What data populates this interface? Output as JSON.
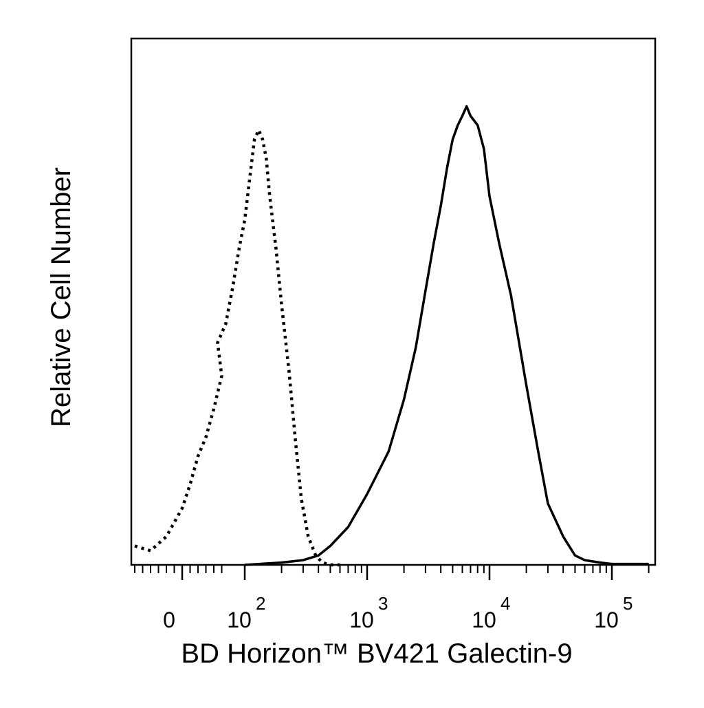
{
  "chart_data": {
    "type": "line",
    "title": "",
    "xlabel": "BD Horizon™ BV421 Galectin-9",
    "ylabel": "Relative Cell Number",
    "x_scale": "biexponential",
    "xlim": [
      -60,
      250000
    ],
    "ylim": [
      0,
      100
    ],
    "x_ticks": [
      {
        "value": 0,
        "label": "0",
        "sup": ""
      },
      {
        "value": 100,
        "label": "10",
        "sup": "2"
      },
      {
        "value": 1000,
        "label": "10",
        "sup": "3"
      },
      {
        "value": 10000,
        "label": "10",
        "sup": "4"
      },
      {
        "value": 100000,
        "label": "10",
        "sup": "5"
      }
    ],
    "grid": false,
    "legend": "none",
    "series": [
      {
        "style": "dotted",
        "color": "#000000",
        "x": [
          -60,
          -40,
          -20,
          0,
          10,
          20,
          30,
          40,
          50,
          60,
          70,
          80,
          90,
          100,
          110,
          120,
          130,
          140,
          150,
          160,
          180,
          200,
          230,
          260,
          290,
          330,
          380,
          430,
          500,
          600
        ],
        "y": [
          4,
          3,
          6,
          12,
          17,
          23,
          27,
          33,
          40,
          47,
          51,
          59,
          67,
          73,
          82,
          90,
          92,
          90,
          86,
          78,
          67,
          55,
          41,
          26,
          14,
          6,
          2,
          0.5,
          0,
          0
        ]
      },
      {
        "style": "solid",
        "color": "#000000",
        "x": [
          100,
          200,
          300,
          400,
          500,
          700,
          1000,
          1500,
          2000,
          2500,
          3000,
          3500,
          4000,
          4500,
          5000,
          5500,
          6000,
          6500,
          7000,
          8000,
          9000,
          10000,
          12000,
          15000,
          20000,
          25000,
          30000,
          40000,
          50000,
          60000,
          80000,
          100000,
          150000,
          200000
        ],
        "y": [
          0,
          0.5,
          1,
          2,
          4,
          8,
          15,
          24,
          35,
          46,
          58,
          68,
          76,
          84,
          90,
          93,
          95,
          97,
          95,
          93,
          88,
          78,
          68,
          57,
          38,
          24,
          13,
          6,
          2,
          1,
          0.5,
          0.2,
          0.2,
          0.2
        ]
      }
    ]
  }
}
